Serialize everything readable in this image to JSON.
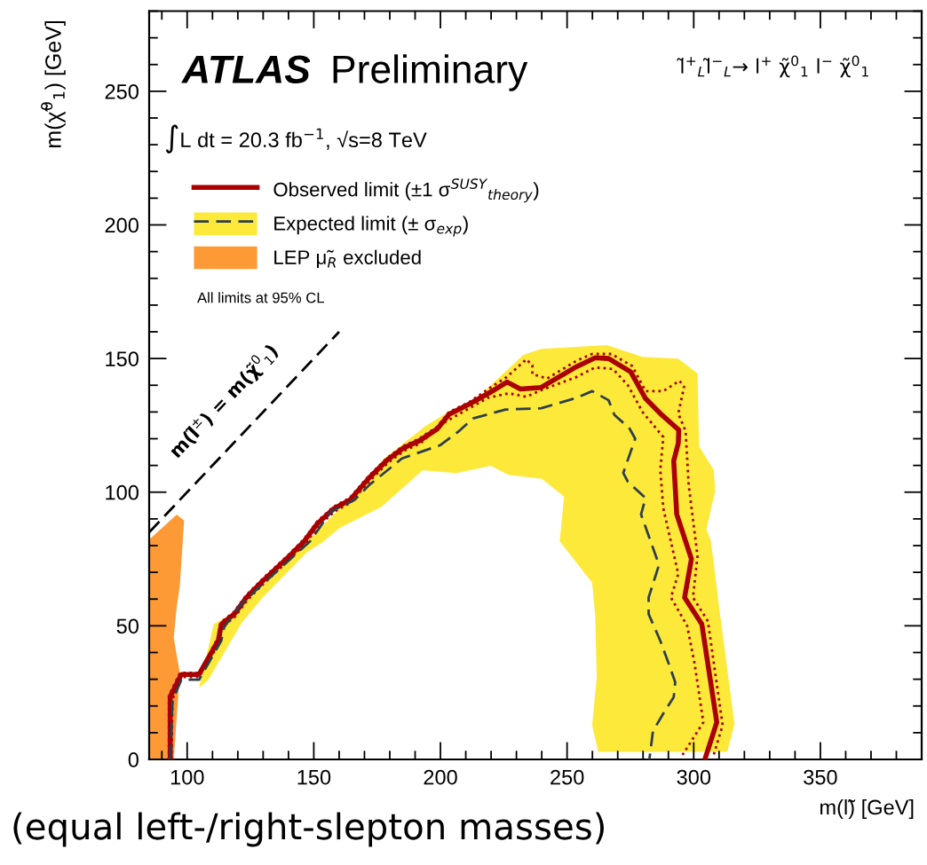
{
  "chart_data": {
    "type": "line",
    "xlabel": "m(l̃) [GeV]",
    "ylabel": "m(χ̃$^{0}$$_{1}$) [GeV]",
    "xlim": [
      85,
      390
    ],
    "ylim": [
      0,
      280
    ],
    "xticks": [
      100,
      150,
      200,
      250,
      300,
      350
    ],
    "yticks": [
      0,
      50,
      100,
      150,
      200,
      250
    ],
    "grid": false,
    "legend": "top left",
    "series": [
      {
        "color": "#000000",
        "line_style": "dashed",
        "x": [
          85,
          160
        ],
        "values": [
          85,
          160
        ]
      },
      {
        "name": "Observed limit (±1 σ$^{SUSY}$$_{theory}$)",
        "color": "#aa0000",
        "line_style": "solid",
        "x": [
          93.3,
          93.3,
          97.7,
          104.7,
          112.3,
          113.5,
          118.7,
          123.4,
          129.8,
          140.4,
          146.2,
          151.5,
          157.9,
          164.3,
          171.9,
          179,
          185.4,
          191.8,
          198.8,
          203.5,
          211.7,
          221,
          226.3,
          231.6,
          239.8,
          253.8,
          261.1,
          266.4,
          275.1,
          281,
          287.4,
          294.1,
          293.9,
          292.1,
          293.3,
          299.1,
          296.4,
          303.2,
          309.1,
          304.4
        ],
        "values": [
          0,
          23.5,
          31.8,
          31.8,
          44.5,
          50.6,
          54.5,
          60.6,
          66.7,
          76.1,
          81.6,
          88.3,
          93.8,
          97.1,
          105.4,
          112,
          116.5,
          119.3,
          123.7,
          129.2,
          133.1,
          138.1,
          141.2,
          138.6,
          139.2,
          147,
          150.3,
          150,
          145,
          135,
          128.9,
          123.3,
          118.3,
          111.7,
          91.7,
          75,
          60.6,
          50.6,
          13.9,
          0
        ]
      },
      {
        "color": "#aa0000",
        "line_style": "dotted",
        "x": [
          92.8,
          92.8,
          97.2,
          104.7,
          112,
          113.3,
          118.5,
          123.2,
          129.6,
          140.2,
          146,
          151.3,
          157.7,
          164.1,
          171.7,
          178.8,
          185.2,
          191.6,
          198.6,
          203.3,
          211.5,
          220.8,
          226.1,
          233.9,
          236.3,
          236.3,
          242.1,
          253.8,
          259.9,
          267.5,
          275.7,
          281,
          288,
          294.4,
          296.2,
          293.9,
          296.8,
          298,
          301.5,
          299.7,
          305.6,
          311.4,
          307.9
        ],
        "values": [
          0,
          24,
          32.4,
          32.4,
          45.2,
          51.3,
          55.2,
          61.3,
          67.4,
          76.8,
          82.3,
          89,
          94.5,
          97.8,
          106.1,
          112.7,
          117.2,
          120,
          124.4,
          129.9,
          133.8,
          139.8,
          143,
          149.7,
          147.5,
          144.2,
          142.5,
          149.2,
          151.7,
          151.7,
          147.2,
          137.8,
          137.8,
          141.7,
          139.4,
          129.4,
          122.8,
          102.8,
          76.1,
          60.6,
          51.7,
          12.8,
          1.7
        ]
      },
      {
        "color": "#aa0000",
        "line_style": "dotted",
        "x": [
          93.8,
          94.2,
          97.7,
          104.7,
          112.6,
          113.8,
          119,
          123.7,
          130.1,
          140.7,
          146.5,
          151.8,
          158.2,
          164.6,
          172.2,
          179.3,
          185.7,
          192.1,
          201.2,
          218.7,
          226.9,
          233.9,
          240.1,
          253.8,
          261.1,
          268.1,
          274,
          279.8,
          288,
          286.8,
          288,
          293.9,
          291,
          297.4,
          300.3,
          303.8,
          295.6
        ],
        "values": [
          0,
          22.5,
          30.8,
          30.8,
          43.5,
          49.6,
          53.5,
          59.6,
          65.7,
          75.1,
          80.6,
          87.3,
          92.8,
          96.1,
          104.4,
          111,
          115.5,
          118.3,
          125.9,
          135.3,
          137,
          135.7,
          138.3,
          143.1,
          146.7,
          146.1,
          140,
          130,
          120.6,
          108.3,
          93.9,
          69.4,
          60.6,
          50,
          36.1,
          13.9,
          1.7
        ]
      },
      {
        "type": "area",
        "name": "Expected limit (± σ$_{exp}$)",
        "color": "#fde93a",
        "x": [
          104.7,
          110.5,
          118.7,
          132.2,
          160.2,
          167.3,
          173.1,
          177.8,
          194.2,
          203.5,
          214,
          232.7,
          239.8,
          265.8,
          279.8,
          293.9,
          301.5,
          302.1,
          307.9,
          308.5,
          305,
          306.8,
          310.3,
          316.1,
          313.2,
          262.3,
          259.9,
          261.7,
          261.1,
          259.9,
          247.1,
          248.8,
          240.1,
          226.9,
          219.9,
          206.4,
          193,
          176.6,
          160.2,
          153.2,
          147.4,
          129.8,
          121.6,
          108.2
        ],
        "values": [
          26.8,
          50.6,
          55,
          67.2,
          93.8,
          99.3,
          107.1,
          112.6,
          124.8,
          130.3,
          134.8,
          151.4,
          153.6,
          155,
          150.6,
          150,
          144.4,
          117.2,
          108.3,
          100.6,
          86.1,
          81.7,
          55,
          13.3,
          2.8,
          2.8,
          12.8,
          30.6,
          53.9,
          66.1,
          81.7,
          98.3,
          105,
          106.5,
          109.9,
          107.1,
          108.2,
          94.4,
          86.6,
          81.1,
          77.7,
          60.6,
          51.2,
          29.6
        ]
      },
      {
        "color": "#2f3f4a",
        "line_style": "dashed",
        "x": [
          93.3,
          94.2,
          97.7,
          104.7,
          113.5,
          114.6,
          121.6,
          129.8,
          148.5,
          156.7,
          166.1,
          171.9,
          184.8,
          200,
          207,
          212.9,
          225.7,
          239.8,
          253.8,
          259.9,
          266.4,
          268.7,
          274.6,
          276.9,
          272.2,
          274,
          281,
          279.2,
          286.3,
          282.2,
          282.2,
          286.8,
          289.8,
          292.7,
          292.1,
          288,
          283.9,
          282.5
        ],
        "values": [
          0,
          22,
          29.8,
          29.8,
          44.5,
          49.5,
          58.4,
          65.6,
          81.6,
          92.7,
          97.1,
          102.7,
          112.6,
          117.6,
          122.6,
          127.6,
          130.9,
          131.4,
          135.3,
          137.8,
          134.4,
          128.9,
          123.9,
          120,
          107.2,
          103.9,
          97.8,
          91.7,
          72.8,
          60.6,
          54.4,
          44.4,
          36.7,
          28.9,
          23.3,
          17.2,
          10.6,
          0
        ]
      },
      {
        "type": "area",
        "name": "LEP μ̃$_{R}$ excluded",
        "color": "#fd9a35",
        "x": [
          85,
          85,
          95.9,
          98.8,
          97.1,
          95.9,
          94.7,
          97.1,
          94.7
        ],
        "values": [
          0,
          82.2,
          91.6,
          89.4,
          65,
          57.3,
          45.6,
          32.3,
          0
        ]
      }
    ],
    "annotations": [
      "ATLAS",
      "Preliminary",
      "∫L dt = 20.3 fb$^{−1}$, √s=8 TeV",
      "All limits at 95% CL",
      "l̃$^{+}$$_{L}$l̃$^{−}$$_{L}$→ l$^{+}$ χ̃$^{0}$$_{1}$ l$^{−}$ χ̃$^{0}$$_{1}$",
      "(equal left-/right-slepton masses)",
      "m(l̃$^{±}$) = m(χ̃$^{0}$$_{1}$)"
    ]
  }
}
